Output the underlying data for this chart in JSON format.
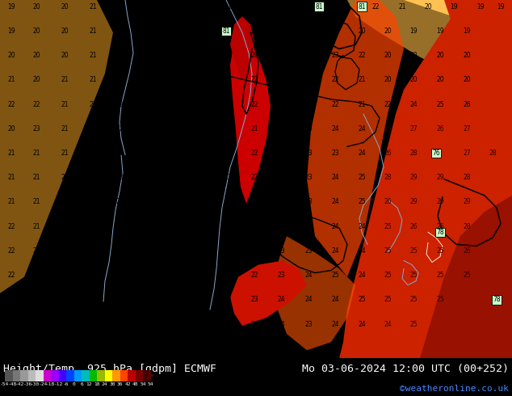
{
  "title_left": "Height/Temp. 925 hPa [gdpm] ECMWF",
  "title_right": "Mo 03-06-2024 12:00 UTC (00+252)",
  "credit": "©weatheronline.co.uk",
  "colorbar_values": [
    -54,
    -48,
    -42,
    -36,
    -30,
    -24,
    -18,
    -12,
    -6,
    0,
    6,
    12,
    18,
    24,
    30,
    36,
    42,
    48,
    54
  ],
  "colorbar_colors": [
    "#555555",
    "#777777",
    "#999999",
    "#bbbbbb",
    "#dddddd",
    "#cc00cc",
    "#aa00ff",
    "#5500ff",
    "#0055ff",
    "#00aaff",
    "#00cccc",
    "#00cc00",
    "#aacc00",
    "#ffff00",
    "#ffaa00",
    "#ff5500",
    "#cc0000",
    "#880000",
    "#440000"
  ],
  "bg_color": "#ff8800",
  "title_fontsize": 10,
  "credit_fontsize": 8,
  "fig_width": 6.34,
  "fig_height": 4.9,
  "dpi": 100
}
